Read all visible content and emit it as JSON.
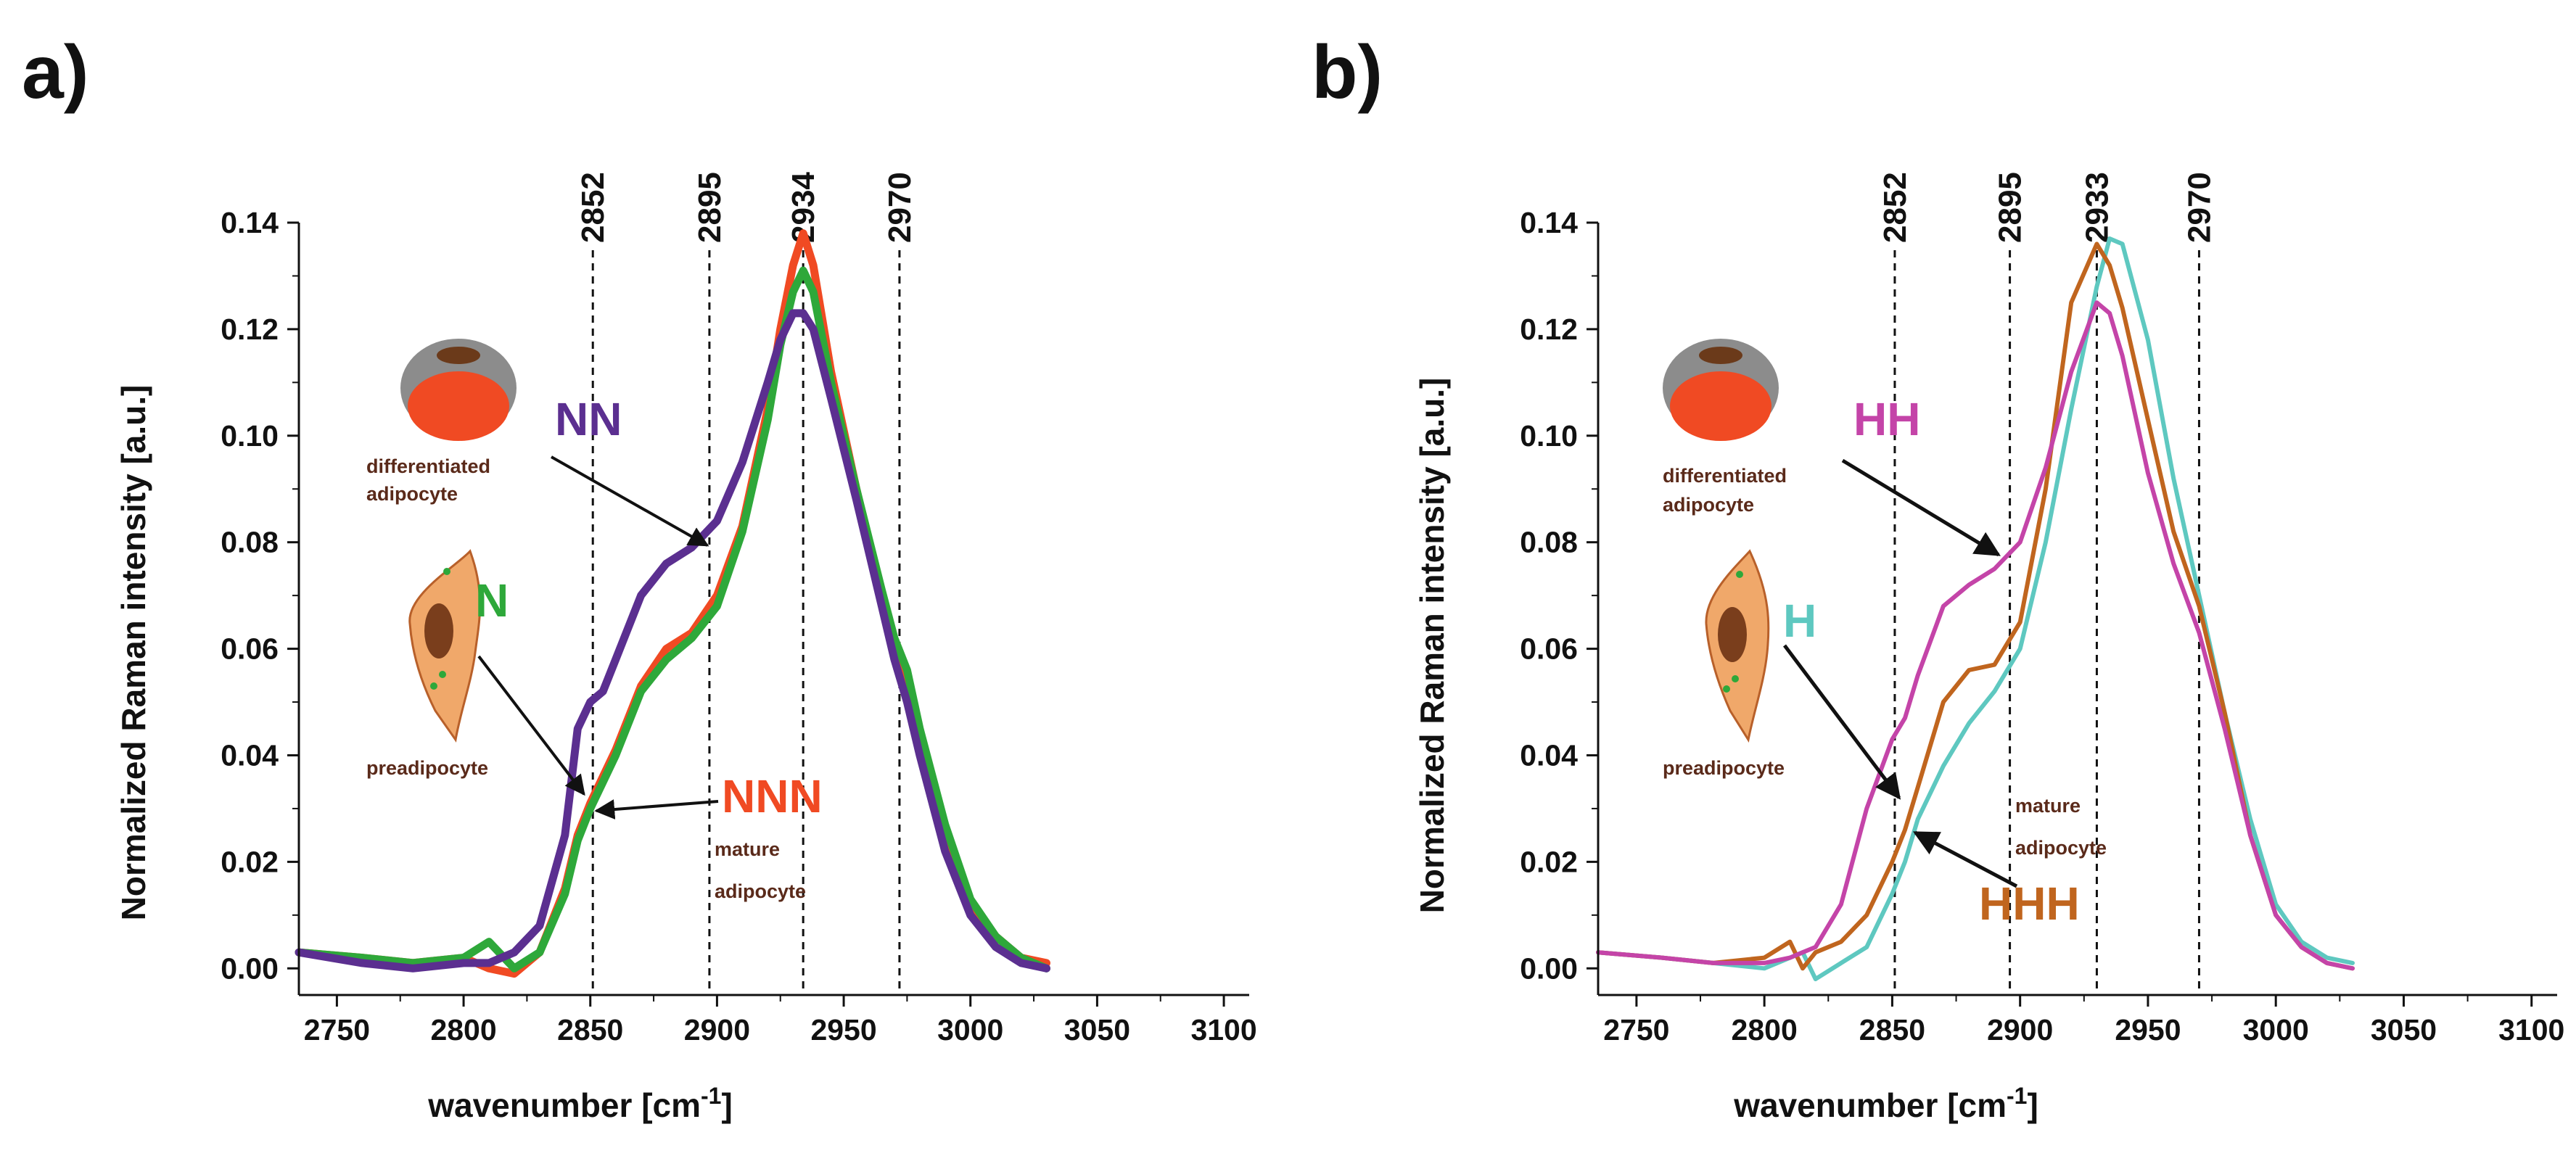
{
  "chart_data": [
    {
      "panel": "a)",
      "type": "line",
      "xlabel": "wavenumber [cm",
      "xlabel_sup": "-1",
      "xlabel_end": "]",
      "ylabel": "Normalized Raman intensity [a.u.]",
      "xlim": [
        2735,
        3110
      ],
      "ylim": [
        -0.005,
        0.14
      ],
      "xticks": [
        "2750",
        "2800",
        "2850",
        "2900",
        "2950",
        "3000",
        "3050",
        "3100"
      ],
      "yticks": [
        "0.00",
        "0.02",
        "0.04",
        "0.06",
        "0.08",
        "0.10",
        "0.12",
        "0.14"
      ],
      "peaks": [
        {
          "label": "2852",
          "x": 2851
        },
        {
          "label": "2895",
          "x": 2897
        },
        {
          "label": "2934",
          "x": 2934
        },
        {
          "label": "2970",
          "x": 2972
        }
      ],
      "series": [
        {
          "name": "NNN",
          "color": "#f04a23",
          "x": [
            2735,
            2760,
            2780,
            2800,
            2810,
            2820,
            2830,
            2840,
            2845,
            2850,
            2855,
            2860,
            2870,
            2880,
            2890,
            2900,
            2910,
            2920,
            2925,
            2930,
            2934,
            2938,
            2945,
            2955,
            2965,
            2970,
            2975,
            2980,
            2990,
            3000,
            3010,
            3020,
            3030
          ],
          "values": [
            0.003,
            0.002,
            0.001,
            0.002,
            0.0,
            -0.001,
            0.003,
            0.015,
            0.025,
            0.031,
            0.036,
            0.041,
            0.053,
            0.06,
            0.063,
            0.07,
            0.083,
            0.105,
            0.12,
            0.132,
            0.138,
            0.132,
            0.112,
            0.09,
            0.07,
            0.06,
            0.052,
            0.042,
            0.025,
            0.012,
            0.006,
            0.002,
            0.001
          ]
        },
        {
          "name": "N",
          "color": "#2ea83a",
          "x": [
            2735,
            2760,
            2780,
            2800,
            2810,
            2820,
            2830,
            2840,
            2845,
            2850,
            2855,
            2860,
            2870,
            2880,
            2890,
            2900,
            2910,
            2920,
            2925,
            2930,
            2934,
            2938,
            2945,
            2955,
            2965,
            2970,
            2975,
            2980,
            2990,
            3000,
            3010,
            3020,
            3030
          ],
          "values": [
            0.003,
            0.002,
            0.001,
            0.002,
            0.005,
            0.0,
            0.003,
            0.014,
            0.024,
            0.03,
            0.035,
            0.04,
            0.052,
            0.058,
            0.062,
            0.068,
            0.082,
            0.103,
            0.117,
            0.127,
            0.131,
            0.127,
            0.11,
            0.09,
            0.071,
            0.062,
            0.056,
            0.045,
            0.027,
            0.013,
            0.006,
            0.002,
            0.0
          ]
        },
        {
          "name": "NN",
          "color": "#5b2f90",
          "x": [
            2735,
            2760,
            2780,
            2800,
            2810,
            2820,
            2830,
            2840,
            2845,
            2850,
            2855,
            2860,
            2870,
            2880,
            2890,
            2900,
            2910,
            2920,
            2925,
            2930,
            2934,
            2938,
            2945,
            2955,
            2965,
            2970,
            2975,
            2980,
            2990,
            3000,
            3010,
            3020,
            3030
          ],
          "values": [
            0.003,
            0.001,
            0.0,
            0.001,
            0.001,
            0.003,
            0.008,
            0.025,
            0.045,
            0.05,
            0.052,
            0.058,
            0.07,
            0.076,
            0.079,
            0.084,
            0.095,
            0.11,
            0.118,
            0.123,
            0.123,
            0.12,
            0.107,
            0.088,
            0.068,
            0.058,
            0.05,
            0.04,
            0.022,
            0.01,
            0.004,
            0.001,
            0.0
          ]
        }
      ],
      "annotations": {
        "diff_label1": "differentiated",
        "diff_label2": "adipocyte",
        "pre_label": "preadipocyte",
        "mature_label1": "mature",
        "mature_label2": "adipocyte",
        "label_diff": "NN",
        "label_pre": "N",
        "label_mature": "NNN",
        "color_diff": "#5b2f90",
        "color_pre": "#2ea83a",
        "color_mature": "#f04a23"
      }
    },
    {
      "panel": "b)",
      "type": "line",
      "xlabel": "wavenumber [cm",
      "xlabel_sup": "-1",
      "xlabel_end": "]",
      "ylabel": "Normalized Raman intensity [a.u.]",
      "xlim": [
        2735,
        3110
      ],
      "ylim": [
        -0.005,
        0.14
      ],
      "xticks": [
        "2750",
        "2800",
        "2850",
        "2900",
        "2950",
        "3000",
        "3050",
        "3100"
      ],
      "yticks": [
        "0.00",
        "0.02",
        "0.04",
        "0.06",
        "0.08",
        "0.10",
        "0.12",
        "0.14"
      ],
      "peaks": [
        {
          "label": "2852",
          "x": 2851
        },
        {
          "label": "2895",
          "x": 2896
        },
        {
          "label": "2933",
          "x": 2930
        },
        {
          "label": "2970",
          "x": 2970
        }
      ],
      "series": [
        {
          "name": "H",
          "color": "#5ec8c0",
          "x": [
            2735,
            2760,
            2780,
            2800,
            2810,
            2815,
            2820,
            2830,
            2840,
            2850,
            2855,
            2860,
            2870,
            2880,
            2890,
            2900,
            2910,
            2920,
            2930,
            2935,
            2940,
            2950,
            2960,
            2970,
            2980,
            2990,
            3000,
            3010,
            3020,
            3030
          ],
          "values": [
            0.003,
            0.002,
            0.001,
            0.0,
            0.002,
            0.003,
            -0.002,
            0.001,
            0.004,
            0.014,
            0.02,
            0.028,
            0.038,
            0.046,
            0.052,
            0.06,
            0.08,
            0.105,
            0.128,
            0.137,
            0.136,
            0.118,
            0.092,
            0.07,
            0.048,
            0.028,
            0.012,
            0.005,
            0.002,
            0.001
          ]
        },
        {
          "name": "HHH",
          "color": "#c0651e",
          "x": [
            2735,
            2760,
            2780,
            2800,
            2810,
            2815,
            2820,
            2830,
            2840,
            2850,
            2855,
            2860,
            2870,
            2880,
            2890,
            2900,
            2910,
            2920,
            2930,
            2935,
            2940,
            2950,
            2960,
            2970,
            2980,
            2990,
            3000,
            3010,
            3020,
            3030
          ],
          "values": [
            0.003,
            0.002,
            0.001,
            0.002,
            0.005,
            0.0,
            0.003,
            0.005,
            0.01,
            0.02,
            0.026,
            0.034,
            0.05,
            0.056,
            0.057,
            0.065,
            0.09,
            0.125,
            0.136,
            0.132,
            0.124,
            0.103,
            0.082,
            0.068,
            0.048,
            0.025,
            0.01,
            0.004,
            0.001,
            0.0
          ]
        },
        {
          "name": "HH",
          "color": "#c444a8",
          "x": [
            2735,
            2760,
            2780,
            2800,
            2810,
            2815,
            2820,
            2830,
            2840,
            2850,
            2855,
            2860,
            2870,
            2880,
            2890,
            2900,
            2910,
            2920,
            2930,
            2935,
            2940,
            2950,
            2960,
            2970,
            2980,
            2990,
            3000,
            3010,
            3020,
            3030
          ],
          "values": [
            0.003,
            0.002,
            0.001,
            0.001,
            0.002,
            0.003,
            0.004,
            0.012,
            0.03,
            0.043,
            0.047,
            0.055,
            0.068,
            0.072,
            0.075,
            0.08,
            0.094,
            0.112,
            0.125,
            0.123,
            0.115,
            0.093,
            0.076,
            0.063,
            0.045,
            0.025,
            0.01,
            0.004,
            0.001,
            0.0
          ]
        }
      ],
      "annotations": {
        "diff_label1": "differentiated",
        "diff_label2": "adipocyte",
        "pre_label": "preadipocyte",
        "mature_label1": "mature",
        "mature_label2": "adipocyte",
        "label_diff": "HH",
        "label_pre": "H",
        "label_mature": "HHH",
        "color_diff": "#c444a8",
        "color_pre": "#5ec8c0",
        "color_mature": "#c0651e"
      }
    }
  ]
}
